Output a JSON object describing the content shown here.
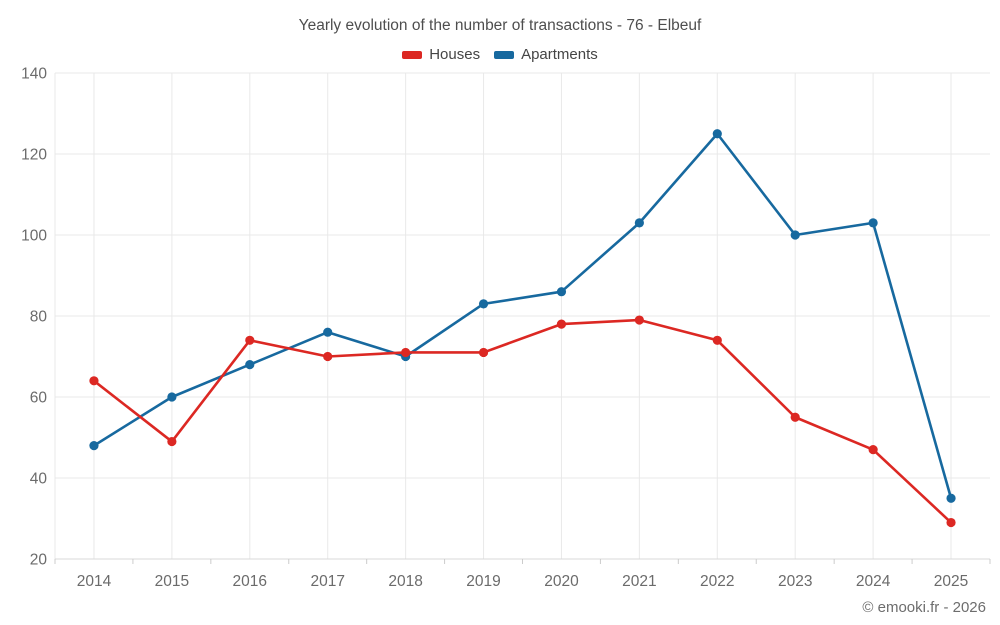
{
  "chart": {
    "title": "Yearly evolution of the number of transactions - 76 - Elbeuf",
    "copyright": "© emooki.fr - 2026"
  },
  "chart_data": {
    "type": "line",
    "title": "Yearly evolution of the number of transactions - 76 - Elbeuf",
    "categories": [
      "2014",
      "2015",
      "2016",
      "2017",
      "2018",
      "2019",
      "2020",
      "2021",
      "2022",
      "2023",
      "2024",
      "2025"
    ],
    "series": [
      {
        "name": "Houses",
        "color": "#dc2823",
        "values": [
          64,
          49,
          74,
          70,
          71,
          71,
          78,
          79,
          74,
          55,
          47,
          29
        ]
      },
      {
        "name": "Apartments",
        "color": "#17699f",
        "values": [
          48,
          60,
          68,
          76,
          70,
          83,
          86,
          103,
          125,
          100,
          103,
          35
        ]
      }
    ],
    "xlabel": "",
    "ylabel": "",
    "ylim": [
      20,
      140
    ],
    "yticks": [
      20,
      40,
      60,
      80,
      100,
      120,
      140
    ],
    "grid": true,
    "legend_position": "top",
    "colors": {
      "grid": "#e9e9e9",
      "axis_line": "#d9d9d9",
      "tick_mark": "#cccccc",
      "tick_label": "#6b6b6b",
      "title_text": "#4e4e4e"
    }
  }
}
